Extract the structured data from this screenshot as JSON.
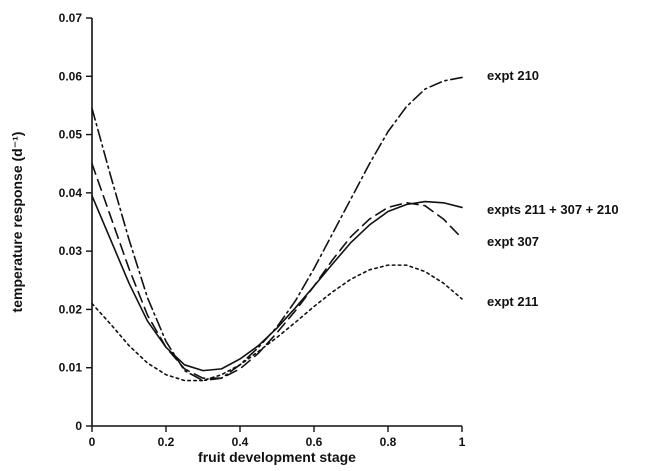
{
  "chart_data": {
    "type": "line",
    "title": "",
    "xlabel": "fruit development stage",
    "ylabel": "temperature response (d⁻¹)",
    "xlim": [
      0,
      1
    ],
    "ylim": [
      0,
      0.07
    ],
    "grid": false,
    "x_ticks": [
      "0",
      "0.2",
      "0.4",
      "0.6",
      "0.8",
      "1"
    ],
    "y_ticks": [
      "0",
      "0.01",
      "0.02",
      "0.03",
      "0.04",
      "0.05",
      "0.06",
      "0.07"
    ],
    "x": [
      0,
      0.05,
      0.1,
      0.15,
      0.2,
      0.25,
      0.3,
      0.35,
      0.4,
      0.45,
      0.5,
      0.55,
      0.6,
      0.65,
      0.7,
      0.75,
      0.8,
      0.85,
      0.9,
      0.95,
      1.0
    ],
    "series": [
      {
        "name": "expt 210",
        "dash": "dash-dot",
        "values": [
          0.0545,
          0.043,
          0.032,
          0.022,
          0.0145,
          0.0095,
          0.0078,
          0.0082,
          0.0105,
          0.0135,
          0.017,
          0.0215,
          0.027,
          0.033,
          0.039,
          0.045,
          0.0505,
          0.0548,
          0.0578,
          0.0592,
          0.0598
        ]
      },
      {
        "name": "expts 211 + 307 + 210",
        "dash": "solid",
        "values": [
          0.0395,
          0.032,
          0.0245,
          0.018,
          0.0135,
          0.0105,
          0.0095,
          0.0098,
          0.0115,
          0.0138,
          0.0168,
          0.0203,
          0.024,
          0.0278,
          0.0315,
          0.0345,
          0.0368,
          0.038,
          0.0385,
          0.0383,
          0.0375
        ]
      },
      {
        "name": "expt 307",
        "dash": "long-dash",
        "values": [
          0.045,
          0.036,
          0.027,
          0.019,
          0.0135,
          0.0098,
          0.0082,
          0.0082,
          0.0098,
          0.0125,
          0.016,
          0.0198,
          0.024,
          0.0285,
          0.0325,
          0.0355,
          0.0375,
          0.0383,
          0.0378,
          0.0355,
          0.0322
        ]
      },
      {
        "name": "expt 211",
        "dash": "dotted",
        "values": [
          0.021,
          0.0175,
          0.0138,
          0.0108,
          0.0088,
          0.0078,
          0.0078,
          0.0088,
          0.0105,
          0.0128,
          0.0152,
          0.0178,
          0.0205,
          0.023,
          0.0252,
          0.0268,
          0.0276,
          0.0276,
          0.0265,
          0.0245,
          0.0218
        ]
      }
    ]
  }
}
